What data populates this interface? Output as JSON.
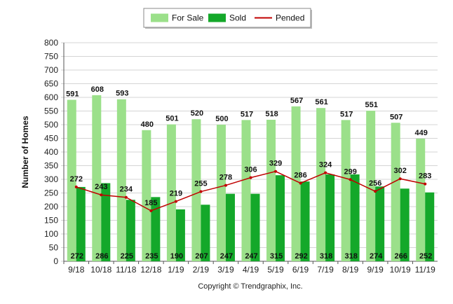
{
  "chart_data": {
    "type": "bar",
    "ylabel": "Number of Homes",
    "ylim": [
      0,
      800
    ],
    "yticks": [
      0,
      50,
      100,
      150,
      200,
      250,
      300,
      350,
      400,
      450,
      500,
      550,
      600,
      650,
      700,
      750,
      800
    ],
    "grid": true,
    "legend_position": "top-center",
    "categories": [
      "9/18",
      "10/18",
      "11/18",
      "12/18",
      "1/19",
      "2/19",
      "3/19",
      "4/19",
      "5/19",
      "6/19",
      "7/19",
      "8/19",
      "9/19",
      "10/19",
      "11/19"
    ],
    "series": [
      {
        "name": "For Sale",
        "kind": "bar",
        "color": "#9be08a",
        "values": [
          591,
          608,
          593,
          480,
          501,
          520,
          500,
          517,
          518,
          567,
          561,
          517,
          551,
          507,
          449
        ]
      },
      {
        "name": "Sold",
        "kind": "bar",
        "color": "#14a82a",
        "values": [
          272,
          286,
          225,
          235,
          190,
          207,
          247,
          247,
          315,
          292,
          318,
          318,
          274,
          266,
          252
        ]
      },
      {
        "name": "Pended",
        "kind": "line",
        "color": "#c00000",
        "values": [
          272,
          243,
          234,
          185,
          219,
          255,
          278,
          306,
          329,
          286,
          324,
          299,
          256,
          302,
          283
        ]
      }
    ],
    "footer": "Copyright © Trendgraphix, Inc."
  }
}
